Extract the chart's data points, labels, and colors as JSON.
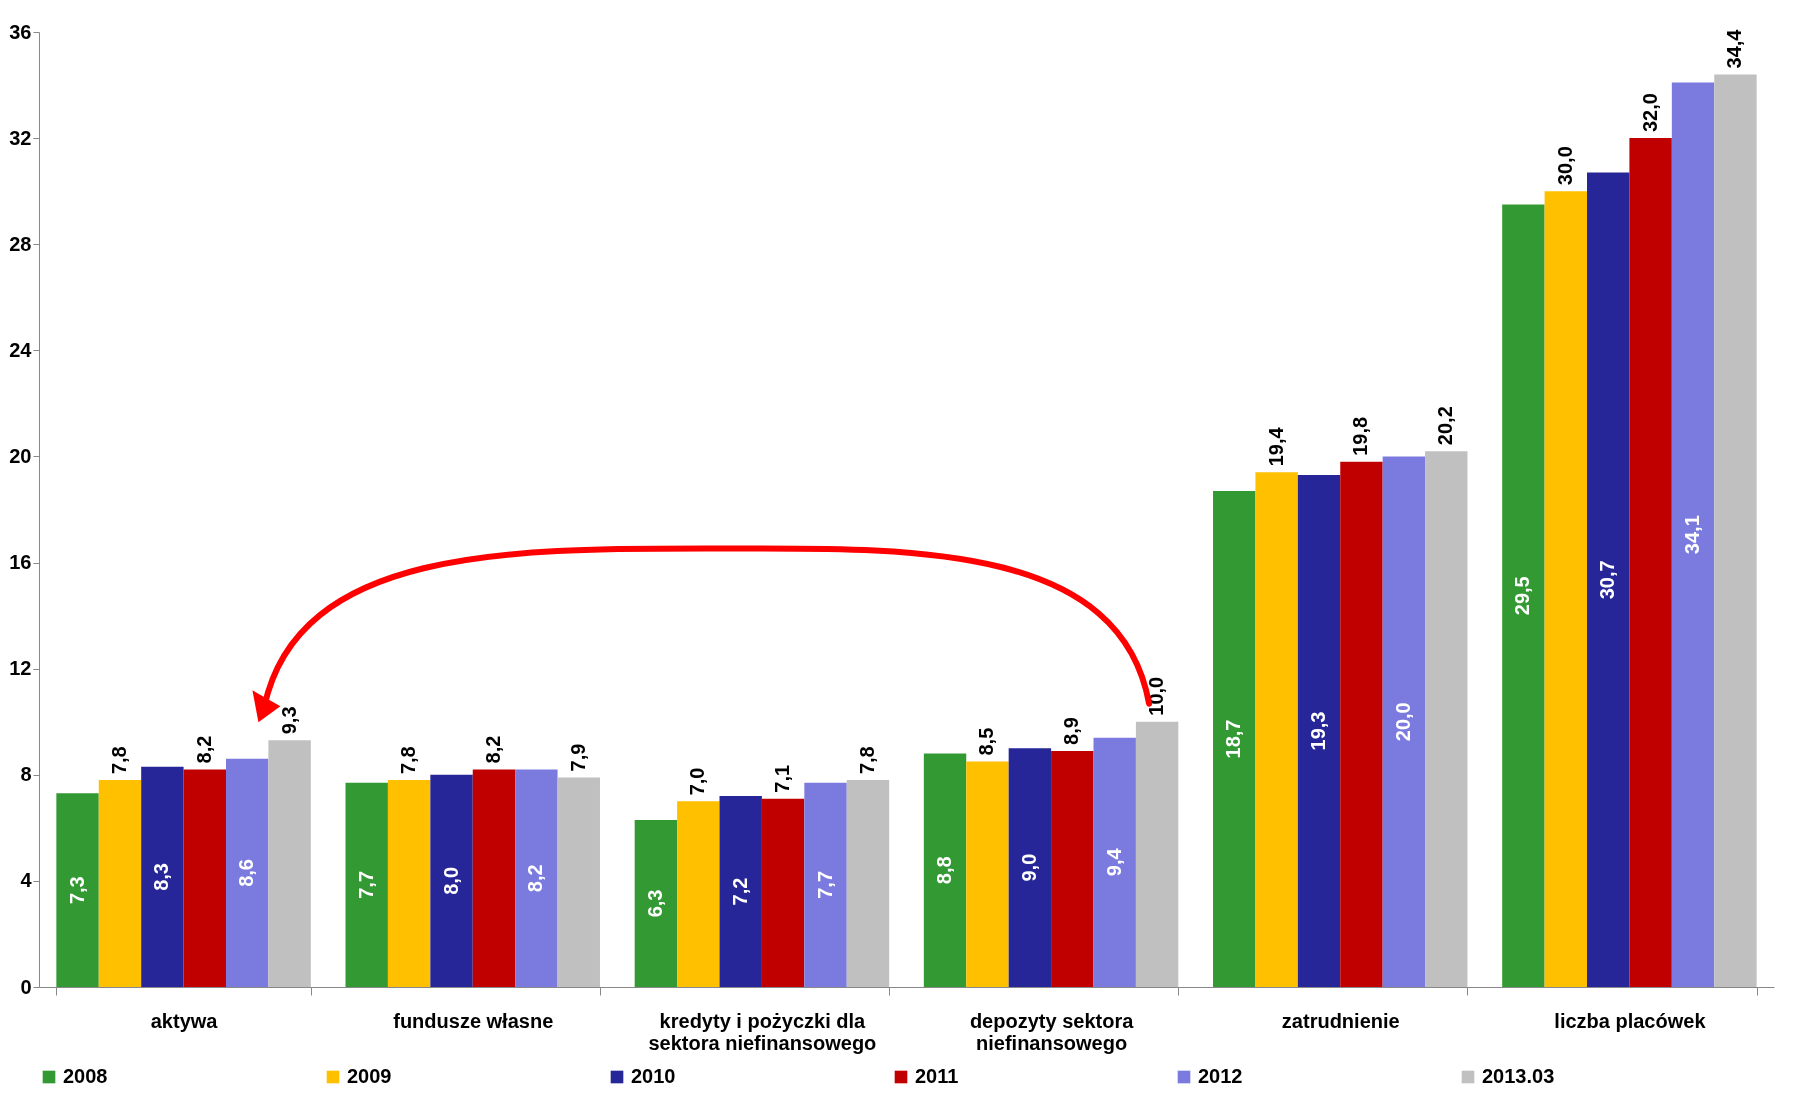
{
  "chart_data": {
    "type": "bar",
    "categories": [
      "aktywa",
      "fundusze własne",
      "kredyty i pożyczki dla sektora niefinansowego",
      "depozyty sektora niefinansowego",
      "zatrudnienie",
      "liczba placówek"
    ],
    "ylim": [
      0,
      36
    ],
    "yticks": [
      0,
      4,
      8,
      12,
      16,
      20,
      24,
      28,
      32,
      36
    ],
    "grid": false,
    "legend": "bottom",
    "series": [
      {
        "name": "2008",
        "color": "#339933",
        "values": [
          7.3,
          7.7,
          6.3,
          8.8,
          18.7,
          29.5
        ],
        "value_labels": [
          "7,3",
          "7,7",
          "6,3",
          "8,8",
          "18,7",
          "29,5"
        ]
      },
      {
        "name": "2009",
        "color": "#ffc000",
        "values": [
          7.8,
          7.8,
          7.0,
          8.5,
          19.4,
          30.0
        ],
        "value_labels": [
          "7,8",
          "7,8",
          "7,0",
          "8,5",
          "19,4",
          "30,0"
        ]
      },
      {
        "name": "2010",
        "color": "#262699",
        "values": [
          8.3,
          8.0,
          7.2,
          9.0,
          19.3,
          30.7
        ],
        "value_labels": [
          "8,3",
          "8,0",
          "7,2",
          "9,0",
          "19,3",
          "30,7"
        ]
      },
      {
        "name": "2011",
        "color": "#c00000",
        "values": [
          8.2,
          8.2,
          7.1,
          8.9,
          19.8,
          32.0
        ],
        "value_labels": [
          "8,2",
          "8,2",
          "7,1",
          "8,9",
          "19,8",
          "32,0"
        ]
      },
      {
        "name": "2012",
        "color": "#7b7bdf",
        "values": [
          8.6,
          8.2,
          7.7,
          9.4,
          20.0,
          34.1
        ],
        "value_labels": [
          "8,6",
          "8,2",
          "7,7",
          "9,4",
          "20,0",
          "34,1"
        ]
      },
      {
        "name": "2013.03",
        "color": "#c0c0c0",
        "values": [
          9.3,
          7.9,
          7.8,
          10.0,
          20.2,
          34.4
        ],
        "value_labels": [
          "9,3",
          "7,9",
          "7,8",
          "10,0",
          "20,2",
          "34,4"
        ]
      }
    ]
  }
}
